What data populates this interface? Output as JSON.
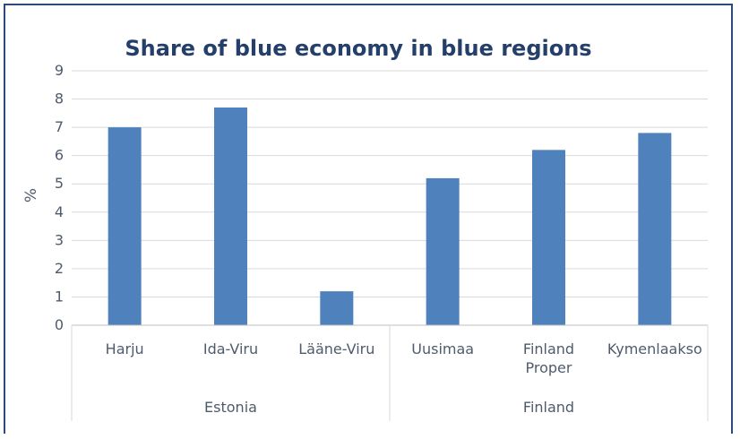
{
  "chart_data": {
    "type": "bar",
    "title": "Share of blue economy in blue regions",
    "ylabel": "%",
    "xlabel": "",
    "ylim": [
      0,
      9
    ],
    "yticks": [
      "0",
      "1",
      "2",
      "3",
      "4",
      "5",
      "6",
      "7",
      "8",
      "9"
    ],
    "grid": true,
    "bar_color": "#4f81bd",
    "categories": [
      {
        "label_lines": [
          "Harju"
        ],
        "value": 7.0,
        "group": 0
      },
      {
        "label_lines": [
          "Ida-Viru"
        ],
        "value": 7.7,
        "group": 0
      },
      {
        "label_lines": [
          "Lääne-Viru"
        ],
        "value": 1.2,
        "group": 0
      },
      {
        "label_lines": [
          "Uusimaa"
        ],
        "value": 5.2,
        "group": 1
      },
      {
        "label_lines": [
          "Finland",
          "Proper"
        ],
        "value": 6.2,
        "group": 1
      },
      {
        "label_lines": [
          "Kymenlaakso"
        ],
        "value": 6.8,
        "group": 1
      }
    ],
    "groups": [
      "Estonia",
      "Finland"
    ]
  }
}
